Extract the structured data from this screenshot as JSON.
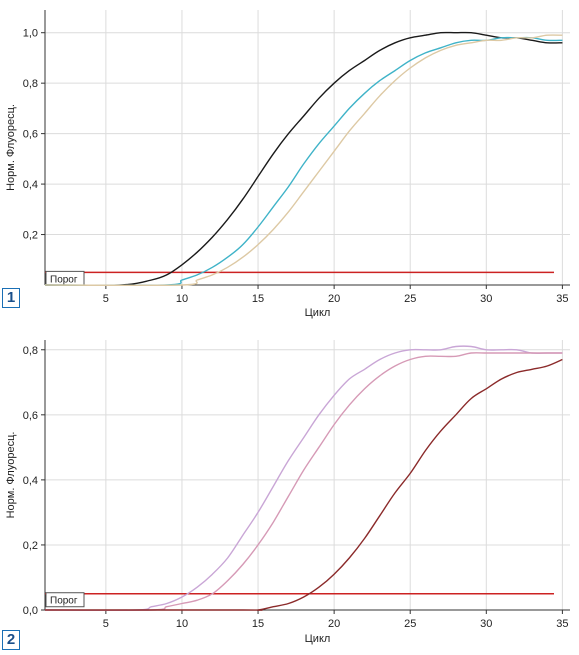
{
  "chart_data": [
    {
      "type": "line",
      "panel_label": "1",
      "xlabel": "Цикл",
      "ylabel": "Норм. Флуоресц.",
      "xlim": [
        1,
        35.5
      ],
      "ylim": [
        0,
        1.09
      ],
      "xticks": [
        5,
        10,
        15,
        20,
        25,
        30,
        35
      ],
      "yticks": [
        0.2,
        0.4,
        0.6,
        0.8,
        1.0
      ],
      "ytick_labels": [
        "0,2",
        "0,4",
        "0,6",
        "0,8",
        "1,0"
      ],
      "grid": true,
      "threshold": {
        "label": "Порог",
        "value": 0.05,
        "color": "#cc2222"
      },
      "series": [
        {
          "color": "#1a1a1a",
          "x": [
            1,
            6,
            8,
            9,
            10,
            11,
            12,
            13,
            14,
            15,
            16,
            17,
            18,
            19,
            20,
            21,
            22,
            23,
            24,
            25,
            26,
            27,
            28,
            29,
            30,
            31,
            32,
            33,
            34,
            35
          ],
          "y": [
            0.0,
            0.0,
            0.02,
            0.04,
            0.08,
            0.13,
            0.19,
            0.26,
            0.34,
            0.43,
            0.52,
            0.6,
            0.67,
            0.74,
            0.8,
            0.85,
            0.89,
            0.93,
            0.96,
            0.98,
            0.99,
            1.0,
            1.0,
            1.0,
            0.99,
            0.98,
            0.98,
            0.97,
            0.96,
            0.96
          ]
        },
        {
          "color": "#3fb3c8",
          "x": [
            1,
            9,
            10,
            11,
            12,
            13,
            14,
            15,
            16,
            17,
            18,
            19,
            20,
            21,
            22,
            23,
            24,
            25,
            26,
            27,
            28,
            29,
            30,
            31,
            32,
            33,
            34,
            35
          ],
          "y": [
            0.0,
            0.0,
            0.02,
            0.04,
            0.07,
            0.11,
            0.16,
            0.23,
            0.31,
            0.39,
            0.48,
            0.56,
            0.63,
            0.7,
            0.76,
            0.81,
            0.85,
            0.89,
            0.92,
            0.94,
            0.96,
            0.97,
            0.97,
            0.98,
            0.98,
            0.98,
            0.97,
            0.97
          ]
        },
        {
          "color": "#ddc9a4",
          "x": [
            1,
            10,
            11,
            12,
            13,
            14,
            15,
            16,
            17,
            18,
            19,
            20,
            21,
            22,
            23,
            24,
            25,
            26,
            27,
            28,
            29,
            30,
            31,
            32,
            33,
            34,
            35
          ],
          "y": [
            0.0,
            0.0,
            0.02,
            0.04,
            0.07,
            0.11,
            0.16,
            0.22,
            0.29,
            0.37,
            0.45,
            0.53,
            0.61,
            0.68,
            0.75,
            0.81,
            0.86,
            0.9,
            0.93,
            0.95,
            0.96,
            0.97,
            0.97,
            0.98,
            0.98,
            0.99,
            0.99
          ]
        }
      ]
    },
    {
      "type": "line",
      "panel_label": "2",
      "xlabel": "Цикл",
      "ylabel": "Норм. Флуоресц.",
      "xlim": [
        1,
        35.5
      ],
      "ylim": [
        0,
        0.83
      ],
      "xticks": [
        5,
        10,
        15,
        20,
        25,
        30,
        35
      ],
      "yticks": [
        0.0,
        0.2,
        0.4,
        0.6,
        0.8
      ],
      "ytick_labels": [
        "0,0",
        "0,2",
        "0,4",
        "0,6",
        "0,8"
      ],
      "grid": true,
      "threshold": {
        "label": "Порог",
        "value": 0.05,
        "color": "#cc2222"
      },
      "series": [
        {
          "color": "#c9a6d6",
          "x": [
            1,
            7,
            8,
            9,
            10,
            11,
            12,
            13,
            14,
            15,
            16,
            17,
            18,
            19,
            20,
            21,
            22,
            23,
            24,
            25,
            26,
            27,
            28,
            29,
            30,
            31,
            32,
            33,
            34,
            35
          ],
          "y": [
            0.0,
            0.0,
            0.01,
            0.02,
            0.04,
            0.07,
            0.11,
            0.16,
            0.23,
            0.3,
            0.38,
            0.46,
            0.53,
            0.6,
            0.66,
            0.71,
            0.74,
            0.77,
            0.79,
            0.8,
            0.8,
            0.8,
            0.81,
            0.81,
            0.8,
            0.8,
            0.8,
            0.79,
            0.79,
            0.79
          ]
        },
        {
          "color": "#d69ab6",
          "x": [
            1,
            8,
            9,
            10,
            11,
            12,
            13,
            14,
            15,
            16,
            17,
            18,
            19,
            20,
            21,
            22,
            23,
            24,
            25,
            26,
            27,
            28,
            29,
            30,
            31,
            32,
            33,
            34,
            35
          ],
          "y": [
            0.0,
            0.0,
            0.01,
            0.02,
            0.03,
            0.05,
            0.09,
            0.14,
            0.2,
            0.27,
            0.35,
            0.43,
            0.5,
            0.57,
            0.63,
            0.68,
            0.72,
            0.75,
            0.77,
            0.78,
            0.78,
            0.78,
            0.79,
            0.79,
            0.79,
            0.79,
            0.79,
            0.79,
            0.79
          ]
        },
        {
          "color": "#8b2a2a",
          "x": [
            1,
            14,
            15,
            16,
            17,
            18,
            19,
            20,
            21,
            22,
            23,
            24,
            25,
            26,
            27,
            28,
            29,
            30,
            31,
            32,
            33,
            34,
            35
          ],
          "y": [
            0.0,
            0.0,
            0.0,
            0.01,
            0.02,
            0.04,
            0.07,
            0.11,
            0.16,
            0.22,
            0.29,
            0.36,
            0.42,
            0.49,
            0.55,
            0.6,
            0.65,
            0.68,
            0.71,
            0.73,
            0.74,
            0.75,
            0.77
          ]
        }
      ]
    }
  ]
}
